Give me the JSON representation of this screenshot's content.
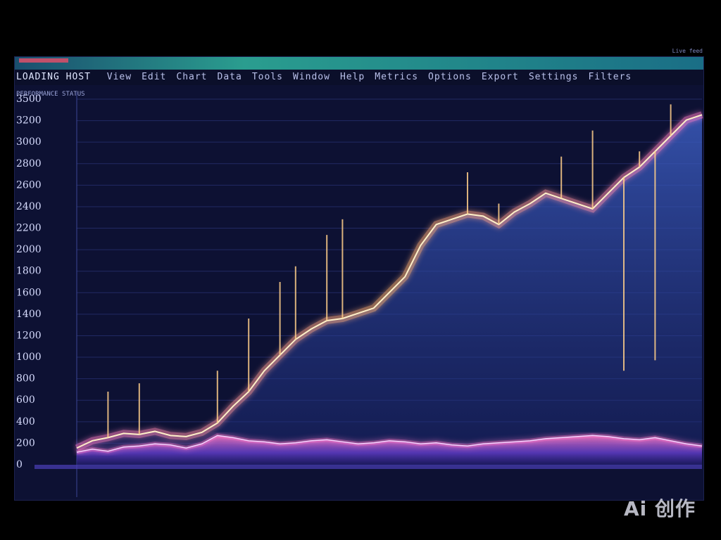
{
  "window": {
    "app_title": "LOADING HOST",
    "menu_items": [
      "View",
      "Edit",
      "Chart",
      "Data",
      "Tools",
      "Window",
      "Help",
      "Metrics",
      "Options",
      "Export",
      "Settings",
      "Filters"
    ],
    "subheader": "PERFORMANCE STATUS",
    "corner_label": "Live feed",
    "top_right_label": "Live feed"
  },
  "watermark": "Ai 创作",
  "colors": {
    "background": "#0d1133",
    "area_upper_fill": "#3d5fc4",
    "area_lower_fill": "#6a3fd6",
    "line_glow": "#ffb36b",
    "line_core": "#fff1c9",
    "spike": "#ffcf8a",
    "accent_pink": "#ff7ac8"
  },
  "chart_data": {
    "type": "area",
    "title": "",
    "xlabel": "",
    "ylabel": "",
    "grid": true,
    "y_tick_labels": [
      "3500",
      "3200",
      "3000",
      "2800",
      "2600",
      "2400",
      "2200",
      "2000",
      "1800",
      "1600",
      "1400",
      "1200",
      "1000",
      "800",
      "600",
      "400",
      "200",
      "0"
    ],
    "x_tick_labels": [
      "",
      "",
      "",
      "",
      "",
      ""
    ],
    "ylim": [
      0,
      3500
    ],
    "x": [
      0,
      1,
      2,
      3,
      4,
      5,
      6,
      7,
      8,
      9,
      10,
      11,
      12,
      13,
      14,
      15,
      16,
      17,
      18,
      19,
      20,
      21,
      22,
      23,
      24,
      25,
      26,
      27,
      28,
      29,
      30,
      31,
      32,
      33,
      34,
      35,
      36,
      37,
      38,
      39,
      40
    ],
    "series": [
      {
        "values": [
          160,
          230,
          260,
          300,
          290,
          320,
          280,
          270,
          310,
          400,
          560,
          700,
          900,
          1050,
          1200,
          1300,
          1380,
          1400,
          1450,
          1500,
          1650,
          1800,
          2100,
          2300,
          2350,
          2400,
          2380,
          2300,
          2420,
          2500,
          2600,
          2550,
          2500,
          2450,
          2600,
          2750,
          2850,
          3000,
          3150,
          3300,
          3350
        ]
      },
      {
        "values": [
          120,
          150,
          130,
          170,
          180,
          200,
          190,
          160,
          200,
          280,
          260,
          230,
          220,
          200,
          210,
          230,
          240,
          220,
          200,
          210,
          230,
          220,
          200,
          210,
          190,
          180,
          200,
          210,
          220,
          230,
          250,
          260,
          270,
          280,
          270,
          250,
          240,
          260,
          230,
          200,
          180
        ]
      }
    ],
    "spikes": [
      {
        "x": 2,
        "value": 700
      },
      {
        "x": 4,
        "value": 780
      },
      {
        "x": 9,
        "value": 900
      },
      {
        "x": 11,
        "value": 1400
      },
      {
        "x": 13,
        "value": 1750
      },
      {
        "x": 14,
        "value": 1900
      },
      {
        "x": 16,
        "value": 2200
      },
      {
        "x": 17,
        "value": 2350
      },
      {
        "x": 22,
        "value": 2100
      },
      {
        "x": 25,
        "value": 2800
      },
      {
        "x": 27,
        "value": 2500
      },
      {
        "x": 31,
        "value": 2950
      },
      {
        "x": 33,
        "value": 3200
      },
      {
        "x": 36,
        "value": 3000
      },
      {
        "x": 38,
        "value": 3450
      },
      {
        "x": 39,
        "value": 3300
      },
      {
        "x": 35,
        "value": 900
      },
      {
        "x": 37,
        "value": 1000
      }
    ]
  }
}
